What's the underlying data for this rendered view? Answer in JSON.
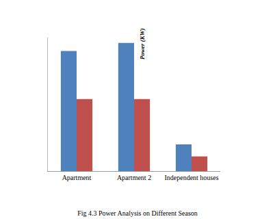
{
  "chart_data": {
    "type": "bar",
    "title": "Fig 4.3 Power Analysis on Different Season",
    "y_label": "Power (KW)",
    "categories": [
      "Apartment",
      "Apartment 2",
      "Independent houses"
    ],
    "series": [
      {
        "color": "#4f81bd",
        "values": [
          180,
          192,
          40
        ]
      },
      {
        "color": "#c0504d",
        "values": [
          108,
          108,
          22
        ]
      }
    ],
    "ylim": [
      0,
      200
    ],
    "tick_labels": "x",
    "grid": false
  }
}
